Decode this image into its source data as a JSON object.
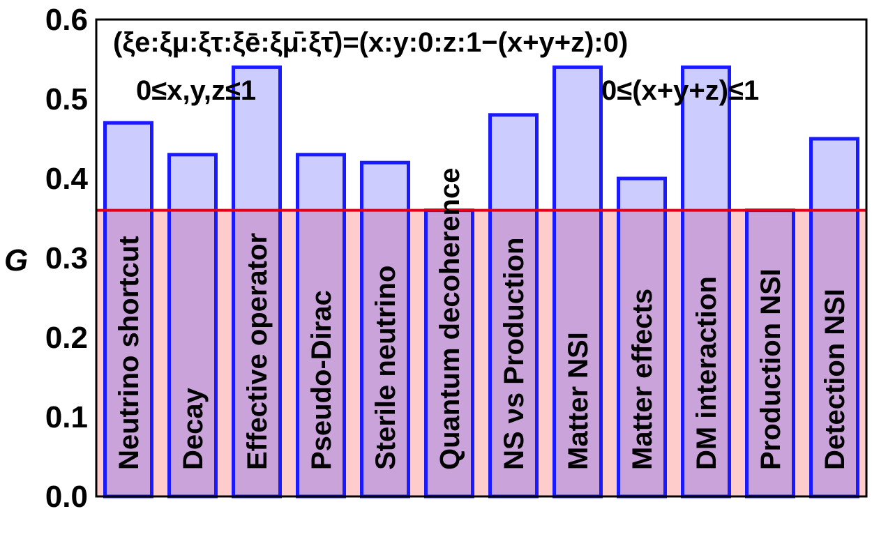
{
  "chart_data": {
    "type": "bar",
    "title": "",
    "xlabel": "",
    "ylabel": "G",
    "ylim": [
      0,
      0.6
    ],
    "yticks": [
      "0.0",
      "0.1",
      "0.2",
      "0.3",
      "0.4",
      "0.5",
      "0.6"
    ],
    "categories": [
      "Neutrino shortcut",
      "Decay",
      "Effective operator",
      "Pseudo-Dirac",
      "Sterile neutrino",
      "Quantum decoherence",
      "NS ν_s Production",
      "Matter NSI",
      "Matter effects",
      "DM interaction",
      "Production NSI",
      "Detection NSI"
    ],
    "values": [
      0.47,
      0.43,
      0.54,
      0.43,
      0.42,
      0.36,
      0.48,
      0.54,
      0.4,
      0.54,
      0.36,
      0.45
    ],
    "reference_line": {
      "y": 0.36
    },
    "annotations": {
      "flavor_ratio": "(ξe:ξμ:ξτ:ξē:ξμ̄:ξτ̄)=(x:y:0:z:1−(x+y+z):0)",
      "range_xyz": "0≤x,y,z≤1",
      "range_sum": "0≤(x+y+z)≤1"
    },
    "colors": {
      "bar_fill": "#ccccff",
      "bar_stroke": "#1a1aff",
      "region_fill": "#ffcccc",
      "reference_line": "#e0001a",
      "overlap_fill": "#c9a3d9"
    }
  }
}
